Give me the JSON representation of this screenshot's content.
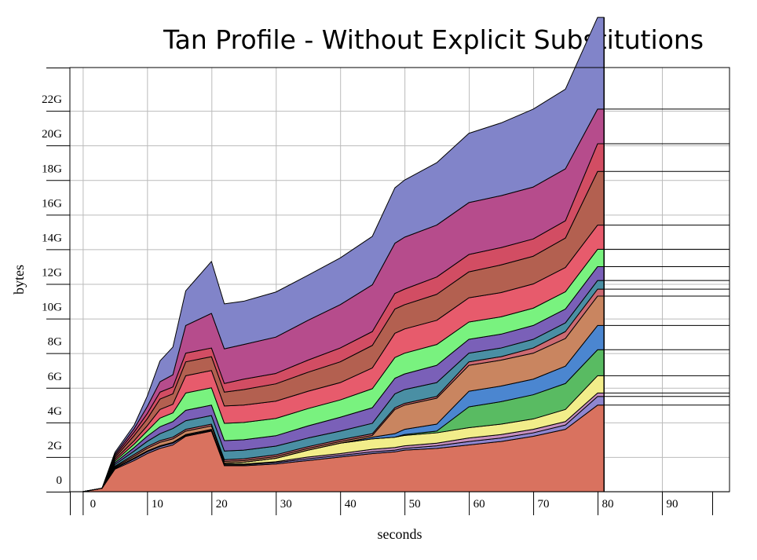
{
  "chart_data": {
    "type": "area",
    "title": "Tan Profile - Without Explicit Substitutions",
    "xlabel": "seconds",
    "ylabel": "bytes",
    "xlim": [
      -2,
      100.5
    ],
    "ylim": [
      0,
      24.5
    ],
    "grid": true,
    "legend": "none",
    "x_ticks": [
      0,
      10,
      20,
      30,
      40,
      50,
      60,
      70,
      80,
      90
    ],
    "x_tick_labels": [
      "0",
      "10",
      "20",
      "30",
      "40",
      "50",
      "60",
      "70",
      "80",
      "90"
    ],
    "y_ticks": [
      0,
      2,
      4,
      6,
      8,
      10,
      12,
      14,
      16,
      18,
      20,
      22
    ],
    "y_tick_labels": [
      "0",
      "2G",
      "4G",
      "6G",
      "8G",
      "10G",
      "12G",
      "14G",
      "16G",
      "18G",
      "20G",
      "22G"
    ],
    "y_unit": "G bytes",
    "colors": [
      "#d9725f",
      "#8f86d0",
      "#c68fbf",
      "#f2ed8a",
      "#59bb62",
      "#4b86d0",
      "#c98560",
      "#cc6a72",
      "#4a8fa4",
      "#7a60b8",
      "#79f27f",
      "#e75b6c",
      "#b36050",
      "#d24d63",
      "#b64c8c",
      "#8184c9"
    ],
    "x": [
      0,
      3,
      5,
      8,
      10,
      12,
      14,
      16,
      20,
      22,
      25,
      30,
      35,
      40,
      45,
      48.5,
      50,
      55,
      60,
      65,
      70,
      75,
      80,
      81
    ],
    "series": [
      {
        "values": [
          0,
          0.2,
          1.3,
          1.8,
          2.2,
          2.5,
          2.7,
          3.2,
          3.5,
          1.5,
          1.5,
          1.6,
          1.8,
          2.0,
          2.2,
          2.3,
          2.4,
          2.5,
          2.7,
          2.9,
          3.2,
          3.6,
          5.0,
          5.0
        ]
      },
      {
        "values": [
          0,
          0,
          0.05,
          0.1,
          0.1,
          0.1,
          0.1,
          0.05,
          0.05,
          0.05,
          0.05,
          0.08,
          0.1,
          0.1,
          0.1,
          0.1,
          0.1,
          0.15,
          0.2,
          0.2,
          0.2,
          0.25,
          0.5,
          0.5
        ]
      },
      {
        "values": [
          0,
          0,
          0.02,
          0.05,
          0.05,
          0.05,
          0.05,
          0.05,
          0.05,
          0.05,
          0.05,
          0.05,
          0.1,
          0.1,
          0.15,
          0.15,
          0.15,
          0.15,
          0.2,
          0.2,
          0.2,
          0.2,
          0.2,
          0.2
        ]
      },
      {
        "values": [
          0,
          0,
          0,
          0,
          0,
          0,
          0,
          0,
          0,
          0.05,
          0.1,
          0.2,
          0.4,
          0.6,
          0.6,
          0.6,
          0.6,
          0.6,
          0.6,
          0.6,
          0.6,
          0.7,
          1.0,
          1.0
        ]
      },
      {
        "values": [
          0,
          0,
          0,
          0,
          0,
          0,
          0,
          0,
          0,
          0,
          0,
          0,
          0,
          0,
          0,
          0,
          0.05,
          0.1,
          1.2,
          1.3,
          1.4,
          1.5,
          1.5,
          1.5
        ]
      },
      {
        "values": [
          0,
          0,
          0,
          0,
          0,
          0,
          0,
          0,
          0,
          0,
          0,
          0,
          0,
          0,
          0.1,
          0.2,
          0.3,
          0.4,
          0.9,
          0.9,
          0.9,
          1.0,
          1.4,
          1.4
        ]
      },
      {
        "values": [
          0,
          0,
          0.05,
          0.1,
          0.15,
          0.2,
          0.2,
          0.2,
          0.2,
          0.1,
          0.1,
          0.1,
          0.1,
          0.1,
          0.1,
          1.4,
          1.4,
          1.5,
          1.5,
          1.5,
          1.5,
          1.6,
          1.7,
          1.7
        ]
      },
      {
        "values": [
          0,
          0,
          0.05,
          0.1,
          0.1,
          0.1,
          0.1,
          0.1,
          0.1,
          0.1,
          0.1,
          0.1,
          0.1,
          0.1,
          0.1,
          0.1,
          0.1,
          0.1,
          0.2,
          0.2,
          0.3,
          0.4,
          0.4,
          0.4
        ]
      },
      {
        "values": [
          0,
          0,
          0.1,
          0.2,
          0.3,
          0.4,
          0.5,
          0.5,
          0.5,
          0.5,
          0.5,
          0.5,
          0.5,
          0.5,
          0.6,
          0.8,
          0.8,
          0.8,
          0.5,
          0.5,
          0.5,
          0.5,
          0.5,
          0.5
        ]
      },
      {
        "values": [
          0,
          0,
          0.1,
          0.2,
          0.3,
          0.4,
          0.4,
          0.6,
          0.6,
          0.6,
          0.6,
          0.6,
          0.7,
          0.8,
          0.9,
          0.9,
          0.9,
          1.0,
          0.8,
          0.8,
          0.8,
          0.8,
          0.8,
          0.8
        ]
      },
      {
        "values": [
          0,
          0,
          0.1,
          0.2,
          0.3,
          0.5,
          0.5,
          1.0,
          1.0,
          1.0,
          1.0,
          1.0,
          1.0,
          1.0,
          1.1,
          1.2,
          1.2,
          1.2,
          1.0,
          1.0,
          1.0,
          1.0,
          1.0,
          1.0
        ]
      },
      {
        "values": [
          0,
          0,
          0.1,
          0.2,
          0.3,
          0.5,
          0.5,
          1.0,
          1.0,
          1.0,
          1.0,
          1.0,
          1.0,
          1.0,
          1.2,
          1.4,
          1.4,
          1.4,
          1.4,
          1.4,
          1.4,
          1.4,
          1.4,
          1.4
        ]
      },
      {
        "values": [
          0,
          0,
          0.1,
          0.3,
          0.4,
          0.6,
          0.6,
          0.8,
          0.8,
          0.8,
          0.9,
          1.0,
          1.1,
          1.2,
          1.3,
          1.4,
          1.4,
          1.5,
          1.5,
          1.6,
          1.6,
          1.7,
          3.1,
          3.1
        ]
      },
      {
        "values": [
          0,
          0,
          0.1,
          0.2,
          0.3,
          0.4,
          0.4,
          0.5,
          0.5,
          0.5,
          0.6,
          0.6,
          0.7,
          0.8,
          0.8,
          0.9,
          0.9,
          1.0,
          1.0,
          1.0,
          1.0,
          1.0,
          1.6,
          1.6
        ]
      },
      {
        "values": [
          0,
          0,
          0.1,
          0.2,
          0.4,
          0.6,
          0.7,
          1.6,
          2.0,
          2.0,
          2.0,
          2.1,
          2.3,
          2.5,
          2.7,
          2.9,
          3.0,
          3.0,
          3.0,
          3.0,
          3.0,
          3.0,
          2.0,
          2.0
        ]
      },
      {
        "values": [
          0,
          0,
          0.1,
          0.2,
          0.6,
          1.2,
          1.6,
          2.0,
          3.0,
          2.6,
          2.5,
          2.6,
          2.6,
          2.7,
          2.8,
          3.2,
          3.3,
          3.6,
          4.0,
          4.2,
          4.5,
          4.6,
          5.3,
          5.3
        ]
      }
    ]
  }
}
